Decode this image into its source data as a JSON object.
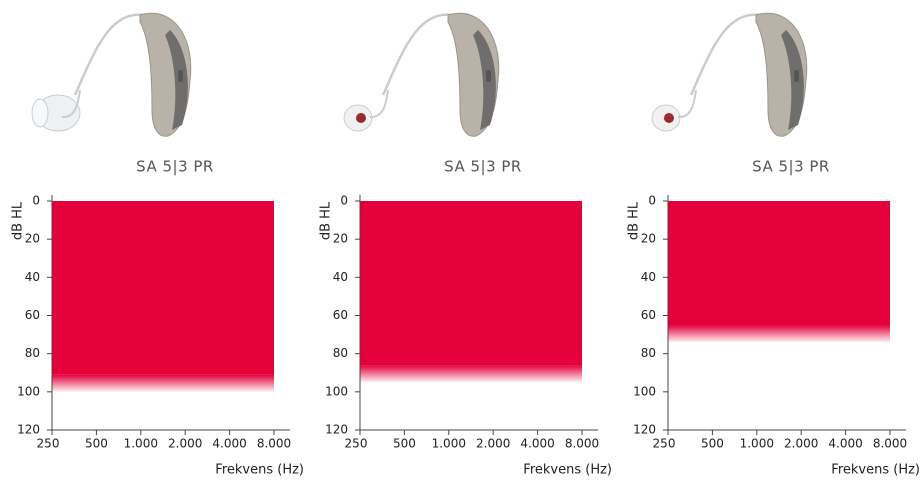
{
  "chart_data": [
    {
      "type": "range",
      "title": "SA 5|3 PR",
      "ylabel": "dB HL",
      "xlabel": "Frekvens (Hz)",
      "color": "#e4003b",
      "range_top": 0,
      "fade_start": 91,
      "range_bottom": 100,
      "xlim": [
        250,
        8000
      ],
      "xticks": [
        250,
        500,
        {
          "value": 1000,
          "label": "1.000"
        },
        {
          "value": 2000,
          "label": "2.000"
        },
        {
          "value": 4000,
          "label": "4.000"
        },
        {
          "value": 8000,
          "label": "8.000"
        }
      ],
      "log_x": true,
      "ylim": [
        0,
        120
      ],
      "inverted_y": true,
      "yticks": [
        0,
        20,
        40,
        60,
        80,
        100,
        120
      ]
    },
    {
      "type": "range",
      "title": "SA 5|3 PR",
      "ylabel": "dB HL",
      "xlabel": "Frekvens (Hz)",
      "color": "#e4003b",
      "range_top": 0,
      "fade_start": 86,
      "range_bottom": 95,
      "xlim": [
        250,
        8000
      ],
      "xticks": [
        250,
        500,
        {
          "value": 1000,
          "label": "1.000"
        },
        {
          "value": 2000,
          "label": "2.000"
        },
        {
          "value": 4000,
          "label": "4.000"
        },
        {
          "value": 8000,
          "label": "8.000"
        }
      ],
      "log_x": true,
      "ylim": [
        0,
        120
      ],
      "inverted_y": true,
      "yticks": [
        0,
        20,
        40,
        60,
        80,
        100,
        120
      ]
    },
    {
      "type": "range",
      "title": "SA 5|3 PR",
      "ylabel": "dB HL",
      "xlabel": "Frekvens (Hz)",
      "color": "#e4003b",
      "range_top": 0,
      "fade_start": 65,
      "range_bottom": 74,
      "xlim": [
        250,
        8000
      ],
      "xticks": [
        250,
        500,
        {
          "value": 1000,
          "label": "1.000"
        },
        {
          "value": 2000,
          "label": "2.000"
        },
        {
          "value": 4000,
          "label": "4.000"
        },
        {
          "value": 8000,
          "label": "8.000"
        }
      ],
      "log_x": true,
      "ylim": [
        0,
        120
      ],
      "inverted_y": true,
      "yticks": [
        0,
        20,
        40,
        60,
        80,
        100,
        120
      ]
    }
  ]
}
